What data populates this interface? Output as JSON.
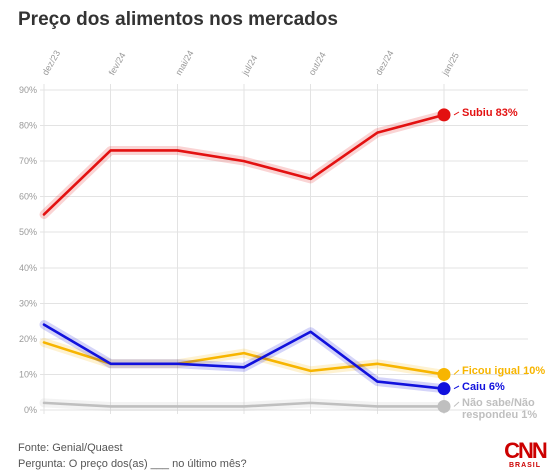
{
  "chart_data": {
    "type": "line",
    "title": "Preço dos alimentos nos mercados",
    "x": [
      "dez/23",
      "fev/24",
      "mai/24",
      "jul/24",
      "out/24",
      "dez/24",
      "jan/25"
    ],
    "yticks": [
      "90%",
      "80%",
      "70%",
      "60%",
      "50%",
      "40%",
      "30%",
      "20%",
      "10%",
      "0%"
    ],
    "ylim": [
      0,
      90
    ],
    "grid": true,
    "series": [
      {
        "name": "Subiu",
        "label": "Subiu 83%",
        "color": "#e31111",
        "values": [
          55,
          73,
          73,
          70,
          65,
          78,
          83
        ]
      },
      {
        "name": "Ficou igual",
        "label": "Ficou igual 10%",
        "color": "#f7b500",
        "values": [
          19,
          13,
          13,
          16,
          11,
          13,
          10
        ]
      },
      {
        "name": "Caiu",
        "label": "Caiu 6%",
        "color": "#1111dd",
        "values": [
          24,
          13,
          13,
          12,
          22,
          8,
          6
        ]
      },
      {
        "name": "Não sabe/Não respondeu",
        "label": [
          "Não sabe/Não",
          "respondeu 1%"
        ],
        "color": "#bfbfbf",
        "values": [
          2,
          1,
          1,
          1,
          2,
          1,
          1
        ]
      }
    ]
  },
  "footer": {
    "source": "Fonte: Genial/Quaest",
    "question": "Pergunta: O preço dos(as) ___ no último mês?"
  },
  "logo": {
    "text": "CNN",
    "sub": "BRASIL"
  }
}
